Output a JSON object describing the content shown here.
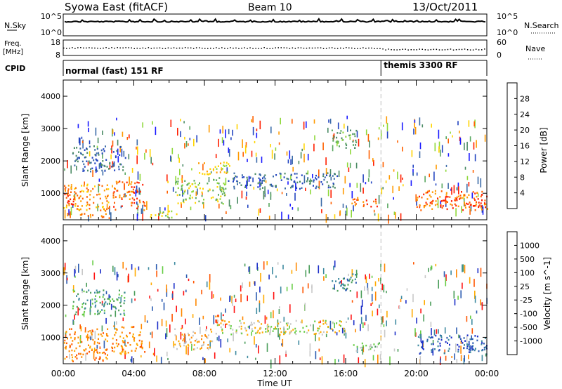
{
  "header": {
    "station": "Syowa East (fitACF)",
    "beam": "Beam 10",
    "date": "13/Oct/2011"
  },
  "noise_panel": {
    "left_label": "N.Sky",
    "right_label": "N.Search",
    "ticks_left": [
      "10^5",
      "10^0"
    ],
    "ticks_right": [
      "10^5",
      "10^0"
    ]
  },
  "freq_panel": {
    "left_label_1": "Freq.",
    "left_label_2": "[MHz]",
    "right_label": "Nave",
    "ticks_left": [
      "18",
      "8"
    ],
    "ticks_right": [
      "60",
      "0"
    ]
  },
  "cpid_panel": {
    "label": "CPID",
    "program_1": "normal (fast) 151 RF",
    "program_2": "themis 3300 RF",
    "switch_time_hours": 18.0
  },
  "colors": {
    "power": [
      "#1a1aff",
      "#2244c0",
      "#3a6aa8",
      "#4a8a64",
      "#5aa860",
      "#8ed83a",
      "#ffd400",
      "#ff9a00",
      "#ff6000",
      "#ff1e00"
    ],
    "velocity": [
      "#1c2fc8",
      "#2a5ab0",
      "#3e8aa0",
      "#4a9d5a",
      "#66cc44",
      "#c8c8c8",
      "#ffaa00",
      "#ff8800",
      "#ff5500",
      "#ff1010"
    ],
    "missing_line": "#c0c0c0"
  },
  "chart_data": [
    {
      "type": "heatmap",
      "name": "power",
      "ylabel": "Slant Range [km]",
      "colorbar_label": "Power [dB]",
      "colorbar_ticks": [
        "28",
        "24",
        "20",
        "16",
        "12",
        "8",
        "4"
      ],
      "ylim": [
        180,
        4500
      ],
      "yticks": [
        "4000",
        "3000",
        "2000",
        "1000"
      ],
      "xlim_hours": [
        0,
        24
      ],
      "regions": [
        {
          "t0": 0.0,
          "t1": 2.6,
          "r0": 250,
          "r1": 1300,
          "level": 7
        },
        {
          "t0": 0.0,
          "t1": 0.8,
          "r0": 600,
          "r1": 1100,
          "level": 9
        },
        {
          "t0": 2.8,
          "t1": 4.6,
          "r0": 500,
          "r1": 1400,
          "level": 8
        },
        {
          "t0": 4.8,
          "t1": 6.4,
          "r0": 250,
          "r1": 500,
          "level": 5
        },
        {
          "t0": 6.3,
          "t1": 9.2,
          "r0": 700,
          "r1": 1500,
          "level": 5
        },
        {
          "t0": 7.5,
          "t1": 9.4,
          "r0": 1600,
          "r1": 2000,
          "level": 6
        },
        {
          "t0": 9.3,
          "t1": 15.5,
          "r0": 1150,
          "r1": 1650,
          "level": 2
        },
        {
          "t0": 15.2,
          "t1": 16.6,
          "r0": 2400,
          "r1": 3000,
          "level": 4
        },
        {
          "t0": 16.3,
          "t1": 18.0,
          "r0": 600,
          "r1": 900,
          "level": 8
        },
        {
          "t0": 20.0,
          "t1": 24.0,
          "r0": 500,
          "r1": 1100,
          "level": 8
        },
        {
          "t0": 21.0,
          "t1": 23.8,
          "r0": 600,
          "r1": 850,
          "level": 9
        },
        {
          "t0": 0.5,
          "t1": 3.5,
          "r0": 1700,
          "r1": 2500,
          "level": 2
        }
      ]
    },
    {
      "type": "heatmap",
      "name": "velocity",
      "ylabel": "Slant Range [km]",
      "colorbar_label": "Velocity [m s^-1]",
      "colorbar_ticks": [
        "1000",
        "500",
        "100",
        "25",
        "-25",
        "-100",
        "-500",
        "-1000"
      ],
      "ylim": [
        180,
        4500
      ],
      "yticks": [
        "4000",
        "3000",
        "2000",
        "1000"
      ],
      "xlim_hours": [
        0,
        24
      ],
      "xticks": [
        "00:00",
        "04:00",
        "08:00",
        "12:00",
        "16:00",
        "20:00",
        "00:00"
      ],
      "xlabel": "Time UT",
      "regions": [
        {
          "t0": 0.0,
          "t1": 2.5,
          "r0": 250,
          "r1": 1300,
          "level": 7
        },
        {
          "t0": 2.7,
          "t1": 4.6,
          "r0": 500,
          "r1": 1400,
          "level": 7
        },
        {
          "t0": 6.2,
          "t1": 8.5,
          "r0": 650,
          "r1": 1300,
          "level": 6
        },
        {
          "t0": 8.5,
          "t1": 9.3,
          "r0": 1400,
          "r1": 1800,
          "level": 8
        },
        {
          "t0": 8.5,
          "t1": 16.0,
          "r0": 1100,
          "r1": 1550,
          "level": 5
        },
        {
          "t0": 16.2,
          "t1": 18.0,
          "r0": 600,
          "r1": 900,
          "level": 4
        },
        {
          "t0": 15.2,
          "t1": 16.6,
          "r0": 2400,
          "r1": 3000,
          "level": 2
        },
        {
          "t0": 20.0,
          "t1": 24.0,
          "r0": 500,
          "r1": 1100,
          "level": 1
        },
        {
          "t0": 0.5,
          "t1": 3.5,
          "r0": 1700,
          "r1": 2500,
          "level": 3
        }
      ]
    }
  ]
}
